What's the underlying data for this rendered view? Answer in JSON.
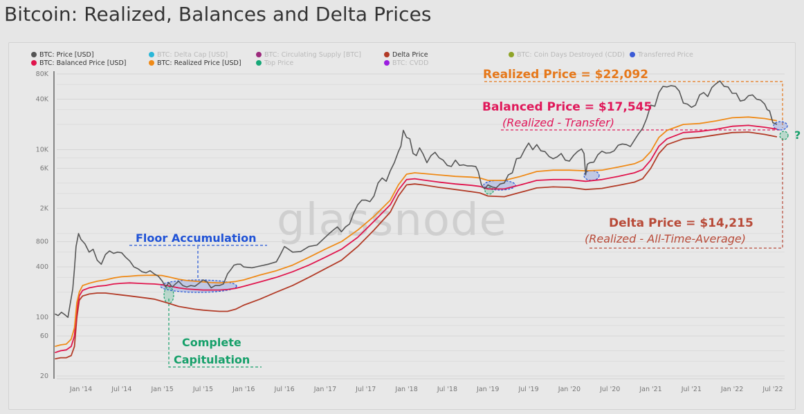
{
  "page": {
    "title": "Bitcoin: Realized, Balances and Delta Prices",
    "watermark": "glassnode"
  },
  "legend": [
    {
      "label": "BTC: Price [USD]",
      "color": "#555555",
      "active": true
    },
    {
      "label": "BTC: Delta Cap [USD]",
      "color": "#2ab7d8",
      "active": false
    },
    {
      "label": "BTC: Circulating Supply [BTC]",
      "color": "#9c2a7c",
      "active": false
    },
    {
      "label": "Delta Price",
      "color": "#b23a26",
      "active": true
    },
    {
      "label": "BTC: Coin Days Destroyed (CDD)",
      "color": "#8fa428",
      "active": false
    },
    {
      "label": "Transferred Price",
      "color": "#3b5bd6",
      "active": false
    },
    {
      "label": "BTC: Balanced Price [USD]",
      "color": "#e0144c",
      "active": true
    },
    {
      "label": "BTC: Realized Price [USD]",
      "color": "#ef8a17",
      "active": true
    },
    {
      "label": "Top Price",
      "color": "#17a878",
      "active": false
    },
    {
      "label": "BTC: CVDD",
      "color": "#9b1ee0",
      "active": false
    }
  ],
  "annotations": {
    "realized": {
      "title": "Realized Price = $22,092",
      "color": "#e6781a"
    },
    "balanced": {
      "title": "Balanced Price = $17,545",
      "subtitle": "(Realized - Transfer)",
      "color": "#e0185a"
    },
    "delta": {
      "title": "Delta Price = $14,215",
      "subtitle": "(Realized - All-Time-Average)",
      "color": "#b84a38"
    },
    "floor": {
      "title": "Floor Accumulation",
      "color": "#1f52d6"
    },
    "capitulation": {
      "title_line1": "Complete",
      "title_line2": "Capitulation",
      "color": "#16a06a"
    },
    "question": {
      "title": "?",
      "color": "#16a06a"
    }
  },
  "chart_data": {
    "type": "line",
    "title": "Bitcoin: Realized, Balances and Delta Prices",
    "xlabel": "",
    "ylabel": "",
    "yscale": "log",
    "ylim": [
      20,
      80000
    ],
    "xlim": [
      2013.67,
      2022.6
    ],
    "grid": true,
    "legend_position": "top",
    "y_ticks": [
      {
        "value": 80000,
        "label": "80K"
      },
      {
        "value": 40000,
        "label": "40K"
      },
      {
        "value": 10000,
        "label": "10K"
      },
      {
        "value": 6000,
        "label": "6K"
      },
      {
        "value": 2000,
        "label": "2K"
      },
      {
        "value": 800,
        "label": "800"
      },
      {
        "value": 400,
        "label": "400"
      },
      {
        "value": 100,
        "label": "100"
      },
      {
        "value": 60,
        "label": "60"
      },
      {
        "value": 20,
        "label": "20"
      }
    ],
    "x_ticks": [
      {
        "value": 2014.0,
        "label": "Jan '14"
      },
      {
        "value": 2014.5,
        "label": "Jul '14"
      },
      {
        "value": 2015.0,
        "label": "Jan '15"
      },
      {
        "value": 2015.5,
        "label": "Jul '15"
      },
      {
        "value": 2016.0,
        "label": "Jan '16"
      },
      {
        "value": 2016.5,
        "label": "Jul '16"
      },
      {
        "value": 2017.0,
        "label": "Jan '17"
      },
      {
        "value": 2017.5,
        "label": "Jul '17"
      },
      {
        "value": 2018.0,
        "label": "Jan '18"
      },
      {
        "value": 2018.5,
        "label": "Jul '18"
      },
      {
        "value": 2019.0,
        "label": "Jan '19"
      },
      {
        "value": 2019.5,
        "label": "Jul '19"
      },
      {
        "value": 2020.0,
        "label": "Jan '20"
      },
      {
        "value": 2020.5,
        "label": "Jul '20"
      },
      {
        "value": 2021.0,
        "label": "Jan '21"
      },
      {
        "value": 2021.5,
        "label": "Jul '21"
      },
      {
        "value": 2022.0,
        "label": "Jan '22"
      },
      {
        "value": 2022.5,
        "label": "Jul '22"
      }
    ],
    "series": [
      {
        "name": "BTC: Price [USD]",
        "color": "#555555",
        "x": [
          2013.68,
          2013.72,
          2013.76,
          2013.8,
          2013.84,
          2013.86,
          2013.88,
          2013.9,
          2013.92,
          2013.94,
          2013.97,
          2014.0,
          2014.05,
          2014.1,
          2014.15,
          2014.2,
          2014.25,
          2014.3,
          2014.35,
          2014.4,
          2014.45,
          2014.5,
          2014.55,
          2014.6,
          2014.65,
          2014.7,
          2014.75,
          2014.8,
          2014.85,
          2014.9,
          2014.95,
          2015.0,
          2015.04,
          2015.08,
          2015.12,
          2015.16,
          2015.2,
          2015.25,
          2015.3,
          2015.35,
          2015.4,
          2015.45,
          2015.5,
          2015.55,
          2015.6,
          2015.65,
          2015.7,
          2015.75,
          2015.8,
          2015.84,
          2015.88,
          2015.92,
          2015.96,
          2016.0,
          2016.1,
          2016.2,
          2016.3,
          2016.4,
          2016.45,
          2016.5,
          2016.55,
          2016.6,
          2016.7,
          2016.8,
          2016.9,
          2017.0,
          2017.05,
          2017.1,
          2017.15,
          2017.2,
          2017.25,
          2017.3,
          2017.35,
          2017.4,
          2017.45,
          2017.5,
          2017.55,
          2017.6,
          2017.65,
          2017.7,
          2017.75,
          2017.8,
          2017.85,
          2017.9,
          2017.93,
          2017.96,
          2018.0,
          2018.04,
          2018.08,
          2018.12,
          2018.16,
          2018.2,
          2018.25,
          2018.3,
          2018.35,
          2018.4,
          2018.45,
          2018.5,
          2018.55,
          2018.6,
          2018.65,
          2018.7,
          2018.75,
          2018.8,
          2018.85,
          2018.88,
          2018.92,
          2018.96,
          2019.0,
          2019.05,
          2019.1,
          2019.15,
          2019.2,
          2019.25,
          2019.3,
          2019.35,
          2019.4,
          2019.45,
          2019.5,
          2019.55,
          2019.6,
          2019.65,
          2019.7,
          2019.75,
          2019.8,
          2019.85,
          2019.9,
          2019.95,
          2020.0,
          2020.05,
          2020.1,
          2020.15,
          2020.18,
          2020.2,
          2020.22,
          2020.25,
          2020.3,
          2020.35,
          2020.4,
          2020.45,
          2020.5,
          2020.55,
          2020.6,
          2020.65,
          2020.7,
          2020.75,
          2020.8,
          2020.85,
          2020.9,
          2020.95,
          2021.0,
          2021.05,
          2021.1,
          2021.15,
          2021.2,
          2021.25,
          2021.3,
          2021.35,
          2021.4,
          2021.45,
          2021.5,
          2021.55,
          2021.6,
          2021.65,
          2021.7,
          2021.75,
          2021.8,
          2021.85,
          2021.9,
          2021.95,
          2022.0,
          2022.05,
          2022.1,
          2022.15,
          2022.2,
          2022.25,
          2022.3,
          2022.35,
          2022.4,
          2022.43,
          2022.46,
          2022.5,
          2022.55
        ],
        "values": [
          110,
          105,
          115,
          108,
          100,
          130,
          170,
          220,
          380,
          700,
          1000,
          850,
          750,
          600,
          650,
          480,
          430,
          560,
          620,
          580,
          600,
          590,
          520,
          470,
          400,
          380,
          350,
          340,
          360,
          330,
          310,
          270,
          230,
          260,
          230,
          250,
          270,
          240,
          230,
          240,
          235,
          255,
          280,
          265,
          225,
          240,
          240,
          250,
          330,
          370,
          420,
          430,
          430,
          400,
          390,
          410,
          430,
          460,
          560,
          700,
          650,
          600,
          610,
          700,
          730,
          900,
          1000,
          1100,
          1200,
          1050,
          1200,
          1300,
          1750,
          2200,
          2500,
          2500,
          2400,
          2800,
          4000,
          4600,
          4200,
          5600,
          7000,
          9500,
          11000,
          17000,
          14000,
          13500,
          9000,
          8500,
          10500,
          9000,
          7000,
          8500,
          9300,
          8000,
          7500,
          6500,
          6300,
          7500,
          6500,
          6600,
          6400,
          6400,
          6300,
          5500,
          3800,
          3400,
          3800,
          3600,
          3500,
          3900,
          4000,
          5000,
          5300,
          7800,
          8000,
          10000,
          12000,
          10000,
          11500,
          9700,
          9500,
          8300,
          7800,
          8200,
          9000,
          7500,
          7300,
          8500,
          9500,
          10200,
          9000,
          5000,
          6700,
          7000,
          7100,
          8700,
          9600,
          9100,
          9200,
          9700,
          11300,
          11700,
          11500,
          10900,
          13000,
          15500,
          18000,
          23500,
          34000,
          33000,
          48000,
          57000,
          56000,
          58000,
          57000,
          50000,
          36000,
          35000,
          32000,
          34000,
          45000,
          48000,
          43000,
          55000,
          61000,
          66000,
          57000,
          56000,
          47000,
          47000,
          38000,
          39000,
          44000,
          45000,
          40000,
          39000,
          35000,
          30000,
          29000,
          21000,
          20000
        ]
      },
      {
        "name": "BTC: Realized Price [USD]",
        "color": "#ef8a17",
        "x": [
          2013.68,
          2013.75,
          2013.82,
          2013.88,
          2013.92,
          2013.95,
          2013.98,
          2014.02,
          2014.1,
          2014.2,
          2014.3,
          2014.4,
          2014.5,
          2014.6,
          2014.7,
          2014.8,
          2014.9,
          2015.0,
          2015.1,
          2015.2,
          2015.3,
          2015.4,
          2015.5,
          2015.6,
          2015.7,
          2015.8,
          2015.9,
          2016.0,
          2016.2,
          2016.4,
          2016.6,
          2016.8,
          2017.0,
          2017.2,
          2017.4,
          2017.6,
          2017.8,
          2017.9,
          2018.0,
          2018.1,
          2018.2,
          2018.4,
          2018.6,
          2018.8,
          2018.9,
          2019.0,
          2019.2,
          2019.4,
          2019.6,
          2019.8,
          2020.0,
          2020.2,
          2020.4,
          2020.6,
          2020.8,
          2020.9,
          2021.0,
          2021.1,
          2021.2,
          2021.4,
          2021.6,
          2021.8,
          2022.0,
          2022.2,
          2022.4,
          2022.55
        ],
        "values": [
          45,
          47,
          48,
          55,
          75,
          150,
          200,
          240,
          255,
          270,
          280,
          295,
          305,
          310,
          315,
          317,
          318,
          315,
          300,
          285,
          275,
          270,
          265,
          260,
          258,
          262,
          268,
          280,
          320,
          360,
          420,
          520,
          650,
          800,
          1100,
          1600,
          2500,
          3800,
          5100,
          5300,
          5200,
          5000,
          4800,
          4700,
          4600,
          4300,
          4300,
          4800,
          5500,
          5700,
          5700,
          5600,
          5700,
          6200,
          6800,
          7500,
          9500,
          14000,
          17000,
          20000,
          20500,
          22000,
          24000,
          24500,
          23500,
          22092
        ]
      },
      {
        "name": "BTC: Balanced Price [USD]",
        "color": "#e0144c",
        "x": [
          2013.68,
          2013.75,
          2013.82,
          2013.88,
          2013.92,
          2013.95,
          2013.98,
          2014.02,
          2014.1,
          2014.2,
          2014.3,
          2014.4,
          2014.5,
          2014.6,
          2014.7,
          2014.8,
          2014.9,
          2015.0,
          2015.1,
          2015.2,
          2015.3,
          2015.4,
          2015.5,
          2015.6,
          2015.7,
          2015.8,
          2015.9,
          2016.0,
          2016.2,
          2016.4,
          2016.6,
          2016.8,
          2017.0,
          2017.2,
          2017.4,
          2017.6,
          2017.8,
          2017.9,
          2018.0,
          2018.1,
          2018.2,
          2018.4,
          2018.6,
          2018.8,
          2018.9,
          2019.0,
          2019.2,
          2019.4,
          2019.6,
          2019.8,
          2020.0,
          2020.2,
          2020.4,
          2020.6,
          2020.8,
          2020.9,
          2021.0,
          2021.1,
          2021.2,
          2021.4,
          2021.6,
          2021.8,
          2022.0,
          2022.2,
          2022.4,
          2022.55
        ],
        "values": [
          38,
          40,
          41,
          45,
          60,
          120,
          180,
          210,
          225,
          235,
          240,
          250,
          255,
          258,
          255,
          252,
          250,
          245,
          235,
          225,
          218,
          215,
          212,
          212,
          212,
          215,
          222,
          235,
          265,
          300,
          350,
          420,
          520,
          650,
          900,
          1400,
          2200,
          3300,
          4400,
          4500,
          4350,
          4100,
          3900,
          3750,
          3650,
          3400,
          3400,
          3800,
          4300,
          4400,
          4400,
          4200,
          4400,
          4800,
          5300,
          5800,
          7500,
          11000,
          13500,
          16000,
          16500,
          17500,
          19000,
          19500,
          18500,
          17545
        ]
      },
      {
        "name": "Delta Price",
        "color": "#b23a26",
        "x": [
          2013.68,
          2013.75,
          2013.82,
          2013.88,
          2013.92,
          2013.95,
          2013.98,
          2014.02,
          2014.1,
          2014.2,
          2014.3,
          2014.4,
          2014.5,
          2014.6,
          2014.7,
          2014.8,
          2014.9,
          2015.0,
          2015.1,
          2015.2,
          2015.3,
          2015.4,
          2015.5,
          2015.6,
          2015.7,
          2015.8,
          2015.9,
          2016.0,
          2016.2,
          2016.4,
          2016.6,
          2016.8,
          2017.0,
          2017.2,
          2017.4,
          2017.6,
          2017.8,
          2017.9,
          2018.0,
          2018.1,
          2018.2,
          2018.4,
          2018.6,
          2018.8,
          2018.9,
          2019.0,
          2019.2,
          2019.4,
          2019.6,
          2019.8,
          2020.0,
          2020.2,
          2020.4,
          2020.6,
          2020.8,
          2020.9,
          2021.0,
          2021.1,
          2021.2,
          2021.4,
          2021.6,
          2021.8,
          2022.0,
          2022.2,
          2022.4,
          2022.55
        ],
        "values": [
          32,
          33,
          33,
          35,
          45,
          100,
          160,
          180,
          190,
          195,
          195,
          190,
          185,
          180,
          175,
          170,
          165,
          155,
          145,
          135,
          130,
          125,
          122,
          120,
          118,
          118,
          125,
          140,
          165,
          200,
          240,
          300,
          380,
          480,
          700,
          1100,
          1800,
          2800,
          3800,
          3900,
          3800,
          3550,
          3350,
          3150,
          3050,
          2800,
          2750,
          3100,
          3500,
          3600,
          3550,
          3350,
          3450,
          3750,
          4100,
          4500,
          6000,
          9000,
          11500,
          13500,
          14000,
          15000,
          16000,
          16200,
          15200,
          14215
        ]
      }
    ],
    "annotations": [
      {
        "text": "Realized Price = $22,092",
        "value": 22092
      },
      {
        "text": "Balanced Price = $17,545 (Realized - Transfer)",
        "value": 17545
      },
      {
        "text": "Delta Price = $14,215 (Realized - All-Time-Average)",
        "value": 14215
      },
      {
        "text": "Floor Accumulation",
        "periods": [
          "2015.0-2015.9",
          "2018.85-2019.2",
          "2020.2",
          "2022.45-2022.55"
        ]
      },
      {
        "text": "Complete Capitulation",
        "periods": [
          "2015.05",
          "2018.9",
          "2022.55"
        ]
      }
    ]
  }
}
